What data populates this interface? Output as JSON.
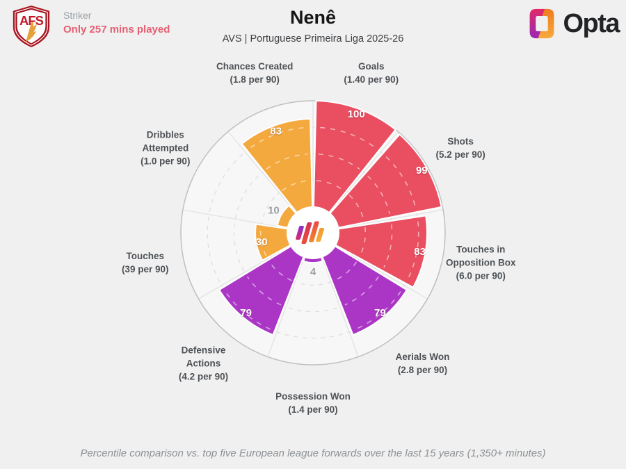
{
  "header": {
    "club_badge": {
      "initials": "AFS"
    },
    "position": "Striker",
    "minutes_note": "Only 257 mins played",
    "player_name": "Nenê",
    "competition": "AVS | Portuguese Primeira Liga 2025-26",
    "brand_wordmark": "Opta"
  },
  "footer": {
    "note": "Percentile comparison vs. top five European league forwards over the last 15 years (1,350+ minutes)"
  },
  "colors": {
    "attacking_red": "#e94f61",
    "defending_purple": "#ab36c5",
    "possession_orange": "#f4a93f",
    "minutes_alert": "#e55f72",
    "page_background": "#f0f0f0",
    "chart_background": "#f7f7f7",
    "small_value_label": "#9aa0a6"
  },
  "chart_data": {
    "type": "bar",
    "variant": "polar-pizza-percentile",
    "title": "Nenê",
    "subtitle": "AVS | Portuguese Primeira Liga 2025-26",
    "unit": "percentile",
    "ylim": [
      0,
      100
    ],
    "ring_guides": [
      25,
      50,
      75
    ],
    "categories": [
      "Goals",
      "Shots",
      "Touches in\nOpposition Box",
      "Aerials Won",
      "Possession Won",
      "Defensive\nActions",
      "Touches",
      "Dribbles\nAttempted",
      "Chances Created"
    ],
    "sublabels": [
      "(1.40 per 90)",
      "(5.2 per 90)",
      "(6.0 per 90)",
      "(2.8 per 90)",
      "(1.4 per 90)",
      "(4.2 per 90)",
      "(39 per 90)",
      "(1.0 per 90)",
      "(1.8 per 90)"
    ],
    "values": [
      100,
      99,
      83,
      79,
      4,
      79,
      30,
      10,
      83
    ],
    "colors": [
      "#e94f61",
      "#e94f61",
      "#e94f61",
      "#ab36c5",
      "#ab36c5",
      "#ab36c5",
      "#f4a93f",
      "#f4a93f",
      "#f4a93f"
    ],
    "footnote": "Percentile comparison vs. top five European league forwards over the last 15 years (1,350+ minutes)"
  }
}
